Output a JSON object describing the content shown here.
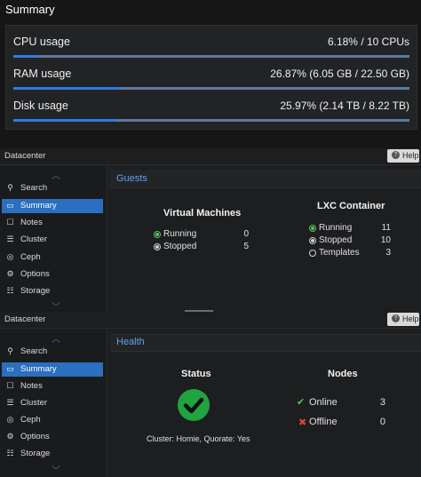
{
  "summary": {
    "title": "Summary",
    "rows": [
      {
        "label": "CPU usage",
        "value": "6.18% / 10 CPUs",
        "percent": 6.18
      },
      {
        "label": "RAM usage",
        "value": "26.87% (6.05 GB / 22.50 GB)",
        "percent": 26.87
      },
      {
        "label": "Disk usage",
        "value": "25.97% (2.14 TB / 8.22 TB)",
        "percent": 25.97
      }
    ]
  },
  "panel1": {
    "title": "Datacenter",
    "help_label": "Help",
    "nav": [
      {
        "label": "Search",
        "icon": "search-icon",
        "glyph": "🔍"
      },
      {
        "label": "Summary",
        "icon": "book-icon",
        "glyph": "📘"
      },
      {
        "label": "Notes",
        "icon": "notes-icon",
        "glyph": "☐"
      },
      {
        "label": "Cluster",
        "icon": "server-icon",
        "glyph": "☰"
      },
      {
        "label": "Ceph",
        "icon": "ceph-icon",
        "glyph": "◎"
      },
      {
        "label": "Options",
        "icon": "gear-icon",
        "glyph": "⚙"
      },
      {
        "label": "Storage",
        "icon": "database-icon",
        "glyph": "☷"
      }
    ],
    "active_index": 1,
    "section_title": "Guests",
    "vm": {
      "title": "Virtual Machines",
      "running_label": "Running",
      "running": "0",
      "stopped_label": "Stopped",
      "stopped": "5"
    },
    "lxc": {
      "title": "LXC Container",
      "running_label": "Running",
      "running": "11",
      "stopped_label": "Stopped",
      "stopped": "10",
      "templates_label": "Templates",
      "templates": "3"
    }
  },
  "panel2": {
    "title": "Datacenter",
    "help_label": "Help",
    "nav": [
      {
        "label": "Search",
        "icon": "search-icon",
        "glyph": "🔍"
      },
      {
        "label": "Summary",
        "icon": "book-icon",
        "glyph": "📘"
      },
      {
        "label": "Notes",
        "icon": "notes-icon",
        "glyph": "☐"
      },
      {
        "label": "Cluster",
        "icon": "server-icon",
        "glyph": "☰"
      },
      {
        "label": "Ceph",
        "icon": "ceph-icon",
        "glyph": "◎"
      },
      {
        "label": "Options",
        "icon": "gear-icon",
        "glyph": "⚙"
      },
      {
        "label": "Storage",
        "icon": "database-icon",
        "glyph": "☷"
      }
    ],
    "active_index": 1,
    "section_title": "Health",
    "status": {
      "title": "Status",
      "cluster_text": "Cluster: Homie, Quorate: Yes",
      "status_color": "#21a33f"
    },
    "nodes": {
      "title": "Nodes",
      "online_label": "Online",
      "online": "3",
      "offline_label": "Offline",
      "offline": "0"
    }
  },
  "colors": {
    "accent": "#2b6fbf",
    "progress": "#2f7ae0",
    "ok": "#5ac45a",
    "error": "#e0433a"
  }
}
